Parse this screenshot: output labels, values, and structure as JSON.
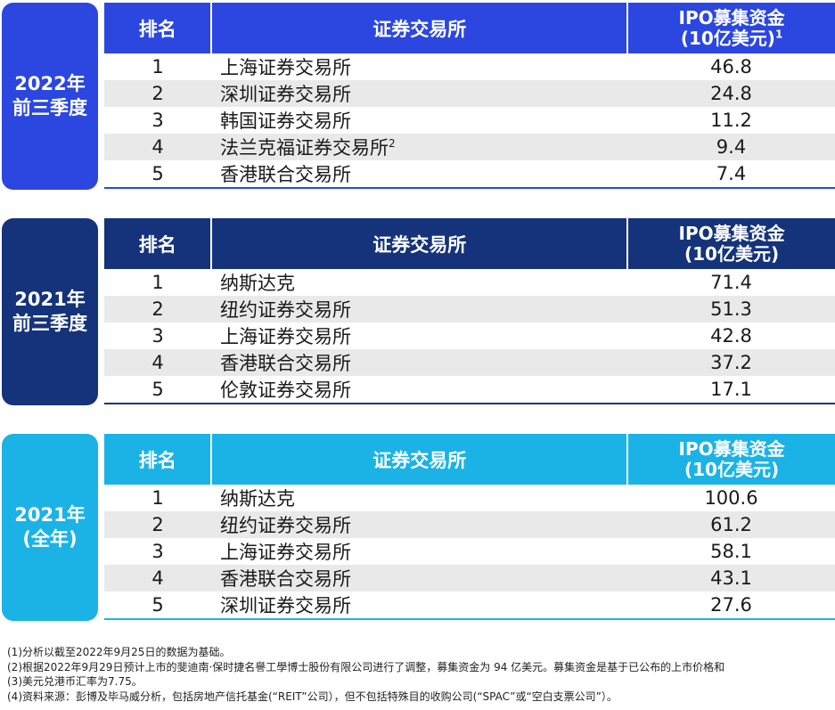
{
  "colors": {
    "s1": "#2b47e0",
    "s2": "#15337a",
    "s3": "#1bb3e6",
    "alt_row": "#e9e9ea"
  },
  "sections": [
    {
      "badge_line1": "2022年",
      "badge_line2": "前三季度",
      "headers": {
        "rank": "排名",
        "exchange": "证券交易所",
        "proceeds_line1": "IPO募集资金",
        "proceeds_line2": "(10亿美元)",
        "proceeds_note": "1"
      },
      "rows": [
        {
          "rank": "1",
          "exchange": "上海证券交易所",
          "note": "",
          "value": "46.8"
        },
        {
          "rank": "2",
          "exchange": "深圳证券交易所",
          "note": "",
          "value": "24.8"
        },
        {
          "rank": "3",
          "exchange": "韩国证券交易所",
          "note": "",
          "value": "11.2"
        },
        {
          "rank": "4",
          "exchange": "法兰克福证券交易所",
          "note": "2",
          "value": "9.4"
        },
        {
          "rank": "5",
          "exchange": "香港联合交易所",
          "note": "",
          "value": "7.4"
        }
      ]
    },
    {
      "badge_line1": "2021年",
      "badge_line2": "前三季度",
      "headers": {
        "rank": "排名",
        "exchange": "证券交易所",
        "proceeds_line1": "IPO募集资金",
        "proceeds_line2": "(10亿美元)",
        "proceeds_note": ""
      },
      "rows": [
        {
          "rank": "1",
          "exchange": "纳斯达克",
          "note": "",
          "value": "71.4"
        },
        {
          "rank": "2",
          "exchange": "纽约证券交易所",
          "note": "",
          "value": "51.3"
        },
        {
          "rank": "3",
          "exchange": "上海证券交易所",
          "note": "",
          "value": "42.8"
        },
        {
          "rank": "4",
          "exchange": "香港联合交易所",
          "note": "",
          "value": "37.2"
        },
        {
          "rank": "5",
          "exchange": "伦敦证券交易所",
          "note": "",
          "value": "17.1"
        }
      ]
    },
    {
      "badge_line1": "2021年",
      "badge_line2": "(全年)",
      "headers": {
        "rank": "排名",
        "exchange": "证券交易所",
        "proceeds_line1": "IPO募集资金",
        "proceeds_line2": "(10亿美元)",
        "proceeds_note": ""
      },
      "rows": [
        {
          "rank": "1",
          "exchange": "纳斯达克",
          "note": "",
          "value": "100.6"
        },
        {
          "rank": "2",
          "exchange": "纽约证券交易所",
          "note": "",
          "value": "61.2"
        },
        {
          "rank": "3",
          "exchange": "上海证券交易所",
          "note": "",
          "value": "58.1"
        },
        {
          "rank": "4",
          "exchange": "香港联合交易所",
          "note": "",
          "value": "43.1"
        },
        {
          "rank": "5",
          "exchange": "深圳证券交易所",
          "note": "",
          "value": "27.6"
        }
      ]
    }
  ],
  "footnotes": [
    "(1)分析以截至2022年9月25日的数据为基础。",
    "(2)根据2022年9月29日预计上市的斐迪南·保时捷名譽工學博士股份有限公司进行了调整，募集资金为 94 亿美元。募集资金是基于已公布的上市价格和",
    "(3)美元兑港币汇率为7.75。",
    "(4)资料来源：彭博及毕马威分析，包括房地产信托基金(“REIT”公司），但不包括特殊目的收购公司(“SPAC”或“空白支票公司”）。"
  ]
}
